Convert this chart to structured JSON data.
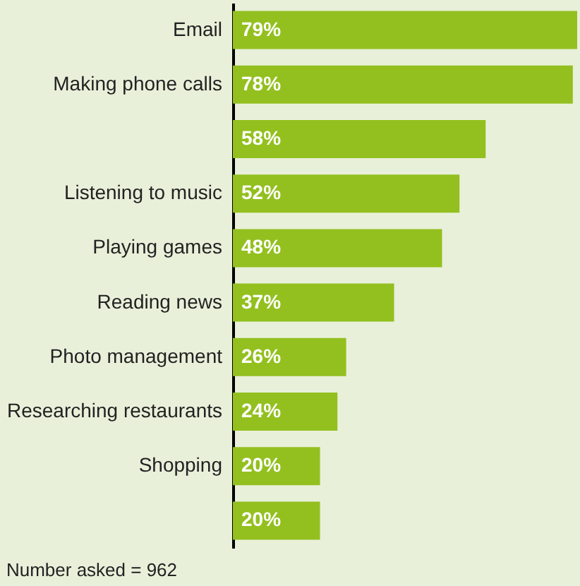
{
  "chart_data": {
    "type": "bar",
    "orientation": "horizontal",
    "categories": [
      "Email",
      "Making phone calls",
      null,
      "Listening to music",
      "Playing games",
      "Reading news",
      "Photo management",
      "Researching restaurants",
      "Shopping",
      null
    ],
    "values": [
      79,
      78,
      58,
      52,
      48,
      37,
      26,
      24,
      20,
      20
    ],
    "value_labels": [
      "79%",
      "78%",
      "58%",
      "52%",
      "48%",
      "37%",
      "26%",
      "24%",
      "20%",
      "20%"
    ],
    "color": "#93c01f",
    "annotations": [
      "Number asked = 962"
    ]
  }
}
